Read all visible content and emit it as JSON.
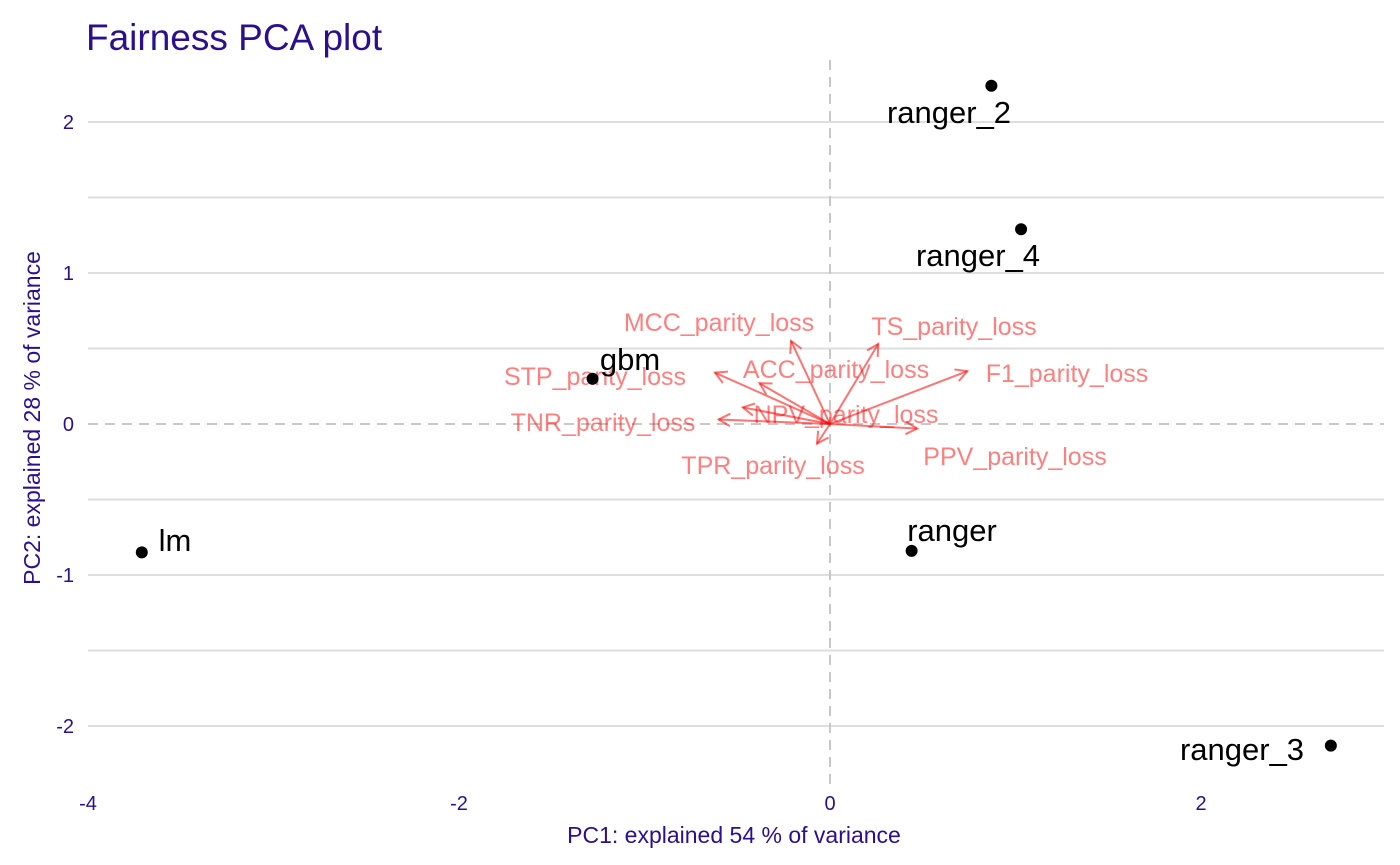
{
  "chart_data": {
    "type": "scatter",
    "title": "Fairness PCA plot",
    "xlabel": "PC1: explained 54 % of variance",
    "ylabel": "PC2: explained 28 % of variance",
    "xlim": [
      -4,
      3.05
    ],
    "ylim": [
      -2.4,
      2.45
    ],
    "xticks": [
      -4,
      -2,
      0,
      2
    ],
    "xtick_labels": [
      "-4",
      "-2",
      "0",
      "2"
    ],
    "yticks": [
      -2,
      -1,
      0,
      1,
      2
    ],
    "ytick_labels": [
      "-2",
      "-1",
      "0",
      "1",
      "2"
    ],
    "y_minor_gridlines": [
      -1.5,
      -0.5,
      0.5,
      1.5
    ],
    "grid": true,
    "zero_reference_lines": "dashed",
    "colors": {
      "title": "#2c0f8f",
      "axis_text": "#2c0f8f",
      "points": "#000000",
      "arrows": "#ff0000"
    },
    "points": [
      {
        "label": "ranger_2",
        "x": 0.87,
        "y": 2.24
      },
      {
        "label": "ranger_4",
        "x": 1.03,
        "y": 1.29
      },
      {
        "label": "gbm",
        "x": -1.28,
        "y": 0.3
      },
      {
        "label": "lm",
        "x": -3.71,
        "y": -0.85
      },
      {
        "label": "ranger",
        "x": 0.44,
        "y": -0.84
      },
      {
        "label": "ranger_3",
        "x": 2.7,
        "y": -2.13
      }
    ],
    "loadings": [
      {
        "label": "MCC_parity_loss",
        "x": -0.21,
        "y": 0.55
      },
      {
        "label": "TS_parity_loss",
        "x": 0.26,
        "y": 0.53
      },
      {
        "label": "STP_parity_loss",
        "x": -0.62,
        "y": 0.34
      },
      {
        "label": "ACC_parity_loss",
        "x": -0.38,
        "y": 0.27
      },
      {
        "label": "F1_parity_loss",
        "x": 0.74,
        "y": 0.35
      },
      {
        "label": "TNR_parity_loss",
        "x": -0.6,
        "y": 0.03
      },
      {
        "label": "NPV_parity_loss",
        "x": -0.47,
        "y": 0.11
      },
      {
        "label": "PPV_parity_loss",
        "x": 0.47,
        "y": -0.03
      },
      {
        "label": "TPR_parity_loss",
        "x": -0.07,
        "y": -0.13
      }
    ]
  }
}
